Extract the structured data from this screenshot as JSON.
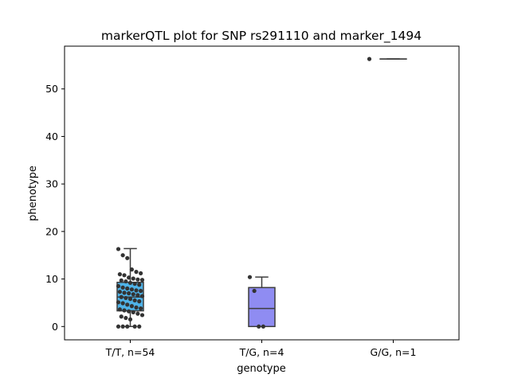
{
  "chart_data": {
    "type": "box",
    "title": "markerQTL plot for SNP rs291110 and marker_1494",
    "xlabel": "genotype",
    "ylabel": "phenotype",
    "ylim": [
      -2.8,
      59.0
    ],
    "yticks": [
      0,
      10,
      20,
      30,
      40,
      50
    ],
    "grid": false,
    "categories": [
      "T/T, n=54",
      "T/G, n=4",
      "G/G, n=1"
    ],
    "boxes": [
      {
        "category": "T/T, n=54",
        "q1": 3.3,
        "median": 6.2,
        "q3": 9.3,
        "whisker_low": 0.0,
        "whisker_high": 16.4,
        "color": "#4fb3e8"
      },
      {
        "category": "T/G, n=4",
        "q1": 0.0,
        "median": 3.8,
        "q3": 8.2,
        "whisker_low": 0.0,
        "whisker_high": 10.4,
        "color": "#8f8cf2"
      },
      {
        "category": "G/G, n=1",
        "q1": 56.3,
        "median": 56.3,
        "q3": 56.3,
        "whisker_low": 56.3,
        "whisker_high": 56.3,
        "color": "#b58cf0"
      }
    ],
    "points": [
      {
        "category": "T/T, n=54",
        "values": [
          16.3,
          15.0,
          14.4,
          12.0,
          11.5,
          11.2,
          11.0,
          10.8,
          10.3,
          10.1,
          9.9,
          9.8,
          9.7,
          9.5,
          9.2,
          9.0,
          8.8,
          8.5,
          8.2,
          8.0,
          7.8,
          7.6,
          7.5,
          7.3,
          7.1,
          7.0,
          6.8,
          6.6,
          6.4,
          6.2,
          6.0,
          5.8,
          5.5,
          5.3,
          5.1,
          4.9,
          4.6,
          4.3,
          4.0,
          3.8,
          3.6,
          3.4,
          3.2,
          3.0,
          2.7,
          2.4,
          2.1,
          1.8,
          1.5,
          0.0,
          0.0,
          0.0,
          0.0,
          0.0
        ]
      },
      {
        "category": "T/G, n=4",
        "values": [
          10.4,
          7.5,
          0.0,
          0.0
        ]
      },
      {
        "category": "G/G, n=1",
        "values": [
          56.3
        ]
      }
    ]
  }
}
